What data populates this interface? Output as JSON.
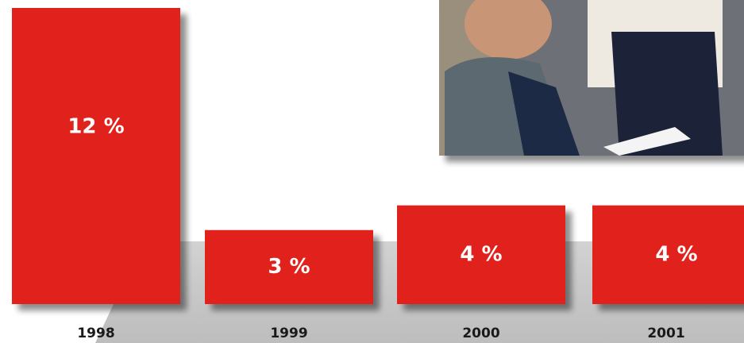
{
  "chart_data": {
    "type": "bar",
    "categories": [
      "1998",
      "1999",
      "2000",
      "2001"
    ],
    "values": [
      12,
      3,
      4,
      4
    ],
    "value_labels": [
      "12 %",
      "3 %",
      "4 %",
      "4 %"
    ],
    "color": "#e1211b",
    "ylim": [
      0,
      12
    ]
  }
}
